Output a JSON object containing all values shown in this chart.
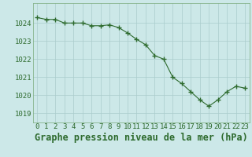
{
  "x": [
    0,
    1,
    2,
    3,
    4,
    5,
    6,
    7,
    8,
    9,
    10,
    11,
    12,
    13,
    14,
    15,
    16,
    17,
    18,
    19,
    20,
    21,
    22,
    23
  ],
  "y": [
    1024.3,
    1024.2,
    1024.2,
    1024.0,
    1024.0,
    1024.0,
    1023.85,
    1023.85,
    1023.9,
    1023.75,
    1023.45,
    1023.1,
    1022.8,
    1022.2,
    1022.0,
    1021.0,
    1020.65,
    1020.2,
    1019.75,
    1019.4,
    1019.75,
    1020.2,
    1020.5,
    1020.4
  ],
  "xlabel": "Graphe pression niveau de la mer (hPa)",
  "ylim": [
    1018.5,
    1025.1
  ],
  "xlim": [
    -0.5,
    23.5
  ],
  "yticks": [
    1019,
    1020,
    1021,
    1022,
    1023,
    1024
  ],
  "xticks": [
    0,
    1,
    2,
    3,
    4,
    5,
    6,
    7,
    8,
    9,
    10,
    11,
    12,
    13,
    14,
    15,
    16,
    17,
    18,
    19,
    20,
    21,
    22,
    23
  ],
  "line_color": "#2d6a2d",
  "marker_color": "#2d6a2d",
  "bg_color": "#cce8e8",
  "grid_color": "#aacccc",
  "xlabel_color": "#2d6a2d",
  "xlabel_fontsize": 8.5,
  "tick_fontsize": 6.5,
  "tick_color": "#2d6a2d",
  "spine_color": "#7aaa7a"
}
